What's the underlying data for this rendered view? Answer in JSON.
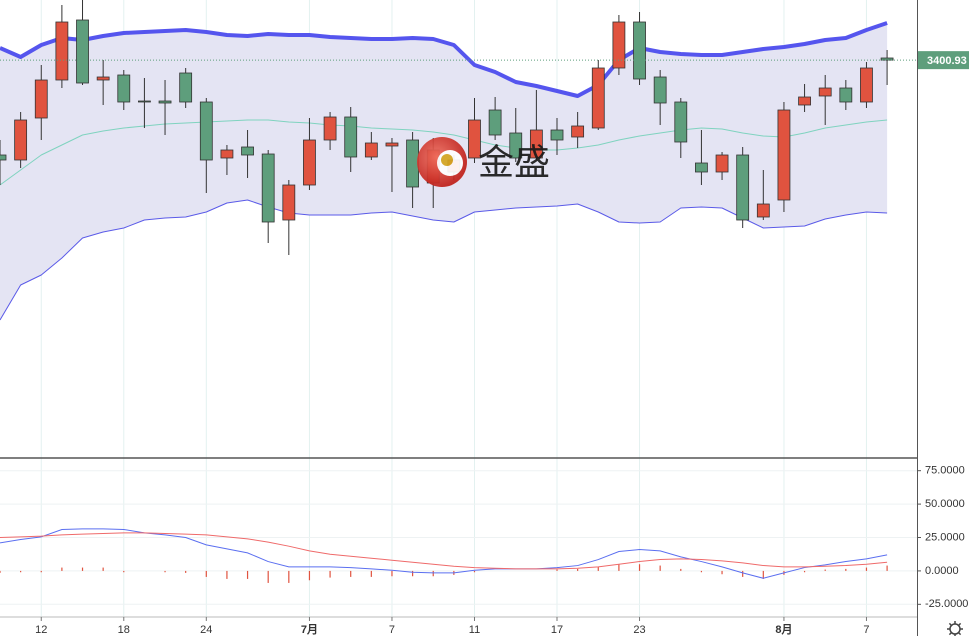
{
  "chart_data": [
    {
      "type": "candlestick",
      "ylim": [
        3202,
        3431
      ],
      "up_color": "#e0533f",
      "down_color": "#5e9e7c",
      "band_fill": "#e4e4f3",
      "candles": {
        "open": [
          3353.5,
          3351,
          3372,
          3391,
          3421,
          3391,
          3393.5,
          3380.5,
          3380.5,
          3394.5,
          3380,
          3352,
          3357.5,
          3354,
          3321,
          3338.5,
          3361,
          3372.5,
          3352.5,
          3358,
          3361,
          3339.5,
          3345,
          3352,
          3376,
          3364.5,
          3352,
          3366,
          3362.5,
          3367,
          3397,
          3420,
          3392.5,
          3380,
          3349.5,
          3345,
          3353.5,
          3322.5,
          3331,
          3378.5,
          3383,
          3387,
          3380,
          3402
        ],
        "high": [
          3361,
          3375,
          3398.5,
          3428.5,
          3431,
          3401,
          3396,
          3392,
          3391,
          3397,
          3382,
          3358.5,
          3366,
          3356,
          3341,
          3372,
          3375,
          3377.5,
          3365,
          3362,
          3365,
          3362,
          3353.5,
          3382,
          3382.5,
          3377,
          3386,
          3372,
          3375,
          3401,
          3423.5,
          3425,
          3396,
          3382,
          3366,
          3355,
          3357.5,
          3346,
          3380,
          3389,
          3393.5,
          3391,
          3400,
          3406
        ],
        "low": [
          3338.5,
          3347,
          3361,
          3387,
          3388.5,
          3378.5,
          3376,
          3367,
          3363.5,
          3377,
          3334.5,
          3343.5,
          3342,
          3309.5,
          3303.5,
          3336,
          3356,
          3345,
          3351,
          3335,
          3327,
          3327,
          3341,
          3349.5,
          3361,
          3350,
          3351,
          3353.5,
          3357,
          3366,
          3393.5,
          3388.5,
          3368.5,
          3352,
          3338.5,
          3341,
          3317,
          3321,
          3325,
          3375,
          3368.5,
          3376,
          3377,
          3388.5
        ],
        "close": [
          3351,
          3371,
          3391,
          3420,
          3389.5,
          3392.5,
          3380,
          3380,
          3379.5,
          3380,
          3351,
          3356,
          3353.5,
          3320,
          3338.5,
          3361,
          3372.5,
          3352.5,
          3359.5,
          3359.5,
          3337.5,
          3356,
          3351,
          3371,
          3363.5,
          3352,
          3366,
          3361,
          3368,
          3397,
          3420,
          3391.5,
          3379.5,
          3360,
          3345,
          3353.5,
          3321,
          3329,
          3376,
          3382.5,
          3387,
          3380,
          3397,
          3400.93
        ]
      },
      "lines": [
        {
          "color": "#5555ee",
          "width": 4,
          "values": [
            3407,
            3402.5,
            3408.5,
            3412,
            3411,
            3413,
            3414.5,
            3415,
            3415.5,
            3416,
            3415,
            3413.5,
            3413,
            3414,
            3413.5,
            3413.5,
            3412.5,
            3412,
            3411.5,
            3411.5,
            3412,
            3411.5,
            3408.5,
            3398.5,
            3395,
            3390,
            3388,
            3385.5,
            3383,
            3388.5,
            3401,
            3407,
            3405,
            3404,
            3403.5,
            3403.5,
            3405,
            3406.5,
            3407.5,
            3409,
            3411,
            3412,
            3416,
            3419.5
          ]
        },
        {
          "color": "#7fd3bf",
          "width": 1,
          "values": [
            3338.5,
            3346,
            3353.5,
            3358.5,
            3363.5,
            3365.5,
            3367,
            3368,
            3369,
            3369.5,
            3370,
            3370.5,
            3371,
            3371,
            3370,
            3369.5,
            3368.5,
            3368,
            3367,
            3366.5,
            3366,
            3365,
            3363.5,
            3361,
            3358.5,
            3357,
            3356,
            3356,
            3357,
            3358.5,
            3361,
            3363,
            3364.5,
            3366,
            3367,
            3366.5,
            3364.5,
            3363,
            3362.5,
            3364.5,
            3367,
            3368.5,
            3370,
            3371
          ]
        },
        {
          "color": "#5a5ae8",
          "width": 1,
          "values": [
            3271,
            3288.5,
            3293.5,
            3302,
            3312,
            3315,
            3317,
            3321,
            3322,
            3322.5,
            3325,
            3329.5,
            3331,
            3327.5,
            3324.5,
            3323.5,
            3323.5,
            3323.5,
            3324.5,
            3325,
            3323,
            3321,
            3320,
            3325,
            3326,
            3327,
            3327.5,
            3328,
            3329,
            3325,
            3320,
            3319.5,
            3320,
            3327,
            3327.5,
            3327,
            3322,
            3317,
            3317.5,
            3318,
            3321.5,
            3323.5,
            3325,
            3324.5
          ]
        }
      ],
      "price_marker": 3400.93,
      "watermark": "金盛"
    },
    {
      "type": "macd",
      "ylim": [
        -33,
        83
      ],
      "yticks": [
        {
          "value": 75,
          "label": "75.0000"
        },
        {
          "value": 50,
          "label": "50.0000"
        },
        {
          "value": 25,
          "label": "25.0000"
        },
        {
          "value": 0,
          "label": "0.0000"
        },
        {
          "value": -25,
          "label": "-25.0000"
        }
      ],
      "grid": true,
      "categories": [
        null,
        null,
        "12",
        null,
        null,
        null,
        "18",
        null,
        null,
        null,
        "24",
        null,
        null,
        null,
        null,
        "7月",
        null,
        null,
        null,
        "7",
        null,
        null,
        null,
        "11",
        null,
        null,
        null,
        "17",
        null,
        null,
        null,
        "23",
        null,
        null,
        null,
        null,
        null,
        null,
        "8月",
        null,
        null,
        null,
        "7",
        null
      ],
      "lines": [
        {
          "color": "#5b6ff0",
          "values": [
            21,
            23.5,
            25.5,
            31,
            31.5,
            31.5,
            31,
            28.5,
            27,
            25,
            19.5,
            16.5,
            13.5,
            7,
            3,
            3,
            3,
            2.5,
            1.5,
            0.5,
            -1,
            -1.5,
            -1.5,
            0.5,
            1.5,
            1.5,
            1.5,
            2.5,
            4,
            8.5,
            14.5,
            16,
            15,
            10.5,
            7,
            3,
            -1.5,
            -5.5,
            -1.5,
            2.5,
            4.5,
            7,
            9,
            12
          ]
        },
        {
          "color": "#ef6a6a",
          "values": [
            25,
            25.5,
            26,
            27,
            27.5,
            28,
            28.5,
            28.5,
            28,
            27.5,
            27,
            25.5,
            24,
            21.5,
            18.5,
            15,
            12.5,
            11,
            9.5,
            8,
            6.5,
            5,
            3.5,
            2.5,
            2,
            1.5,
            1.5,
            1.5,
            2,
            3,
            5,
            7,
            8.5,
            9,
            8.5,
            7.5,
            6,
            4,
            3,
            3,
            3.5,
            4,
            5,
            6.5
          ]
        }
      ],
      "histogram": {
        "color": "#e0533f",
        "values": [
          -1.5,
          -1,
          -1,
          2.5,
          2.5,
          2.5,
          -1,
          0,
          -1,
          -1.5,
          -4.5,
          -6,
          -6,
          -9,
          -9,
          -7,
          -5,
          -4.5,
          -4.5,
          -4,
          -4,
          -4,
          -3,
          -1,
          0,
          0,
          0,
          1,
          1.5,
          3,
          5,
          5,
          4,
          1.5,
          -1,
          -2.5,
          -4.5,
          -6,
          -3,
          -1,
          1,
          1.5,
          2.5,
          4
        ]
      }
    }
  ]
}
